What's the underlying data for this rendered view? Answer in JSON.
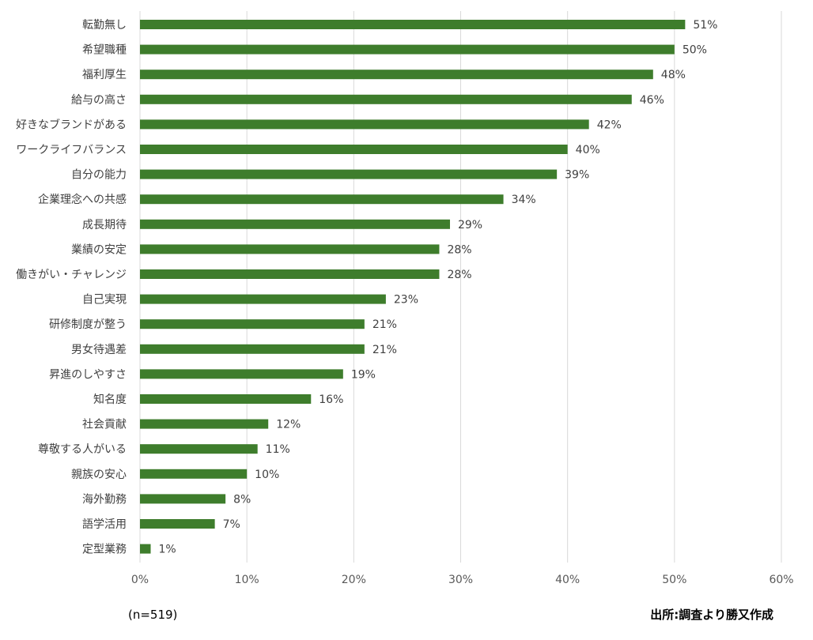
{
  "chart_data": {
    "type": "bar",
    "orientation": "horizontal",
    "categories": [
      "転勤無し",
      "希望職種",
      "福利厚生",
      "給与の高さ",
      "好きなブランドがある",
      "ワークライフバランス",
      "自分の能力",
      "企業理念への共感",
      "成長期待",
      "業績の安定",
      "働きがい・チャレンジ",
      "自己実現",
      "研修制度が整う",
      "男女待遇差",
      "昇進のしやすさ",
      "知名度",
      "社会貢献",
      "尊敬する人がいる",
      "親族の安心",
      "海外勤務",
      "語学活用",
      "定型業務"
    ],
    "values": [
      51,
      50,
      48,
      46,
      42,
      40,
      39,
      34,
      29,
      28,
      28,
      23,
      21,
      21,
      19,
      16,
      12,
      11,
      10,
      8,
      7,
      1
    ],
    "value_labels": [
      "51%",
      "50%",
      "48%",
      "46%",
      "42%",
      "40%",
      "39%",
      "34%",
      "29%",
      "28%",
      "28%",
      "23%",
      "21%",
      "21%",
      "19%",
      "16%",
      "12%",
      "11%",
      "10%",
      "8%",
      "7%",
      "1%"
    ],
    "xlim": [
      0,
      60
    ],
    "x_ticks": [
      0,
      10,
      20,
      30,
      40,
      50,
      60
    ],
    "x_tick_labels": [
      "0%",
      "10%",
      "20%",
      "30%",
      "40%",
      "50%",
      "60%"
    ],
    "grid": "vertical",
    "bar_color": "#3e7d2c",
    "grid_color": "#d9d9d9",
    "title": "",
    "xlabel": "",
    "ylabel": ""
  },
  "notes": {
    "sample_size": "(n=519)",
    "source": "出所:調査より勝又作成"
  }
}
